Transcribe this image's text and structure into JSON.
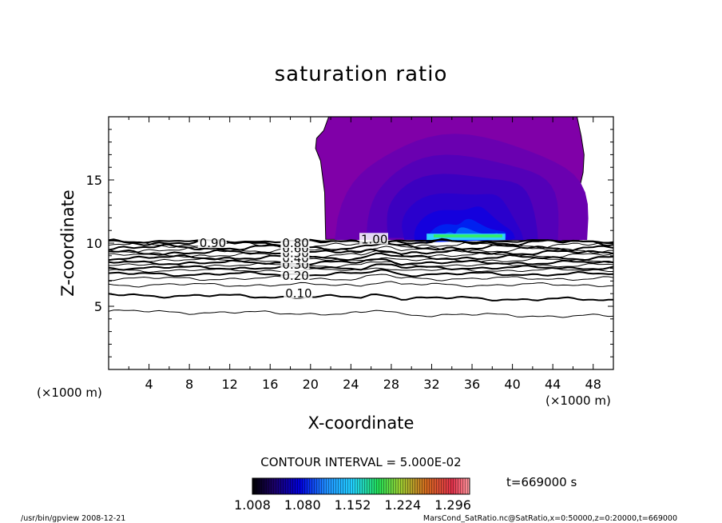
{
  "chart_data": {
    "type": "heatmap",
    "title": "saturation ratio",
    "xlabel": "X-coordinate",
    "ylabel": "Z-coordinate",
    "x_unit_left": "(×1000 m)",
    "x_unit_right": "(×1000 m)",
    "xlim": [
      0,
      50
    ],
    "ylim": [
      0,
      20
    ],
    "xticks": [
      4,
      8,
      12,
      16,
      20,
      24,
      28,
      32,
      36,
      40,
      44,
      48
    ],
    "yticks": [
      5,
      10,
      15
    ],
    "contour_interval_text": "CONTOUR INTERVAL = 5.000E-02",
    "contour_labels": [
      {
        "text": "0.10",
        "x": 17.5,
        "z": 6.0
      },
      {
        "text": "0.20",
        "x": 17.2,
        "z": 7.4
      },
      {
        "text": "0.30",
        "x": 17.2,
        "z": 8.3
      },
      {
        "text": "0.40",
        "x": 17.2,
        "z": 8.8
      },
      {
        "text": "0.50",
        "x": 17.2,
        "z": 9.2
      },
      {
        "text": "0.60",
        "x": 17.2,
        "z": 9.6
      },
      {
        "text": "0.80",
        "x": 17.2,
        "z": 10.0
      },
      {
        "text": "0.90",
        "x": 9.0,
        "z": 10.0
      },
      {
        "text": "1.00",
        "x": 25.0,
        "z": 10.3
      }
    ],
    "colorbar": {
      "ticks": [
        "1.008",
        "1.080",
        "1.152",
        "1.224",
        "1.296"
      ],
      "min": 1.008,
      "max": 1.32
    },
    "time_label": "t=669000 s",
    "supersaturated_region": {
      "x_range": [
        20.5,
        47
      ],
      "z_range": [
        10.2,
        20
      ],
      "peak": {
        "x": 35.5,
        "z": 10.6,
        "value": 1.16
      }
    }
  },
  "footer": {
    "left": "/usr/bin/gpview  2008-12-21",
    "right": "MarsCond_SatRatio.nc@SatRatio,x=0:50000,z=0:20000,t=669000"
  }
}
